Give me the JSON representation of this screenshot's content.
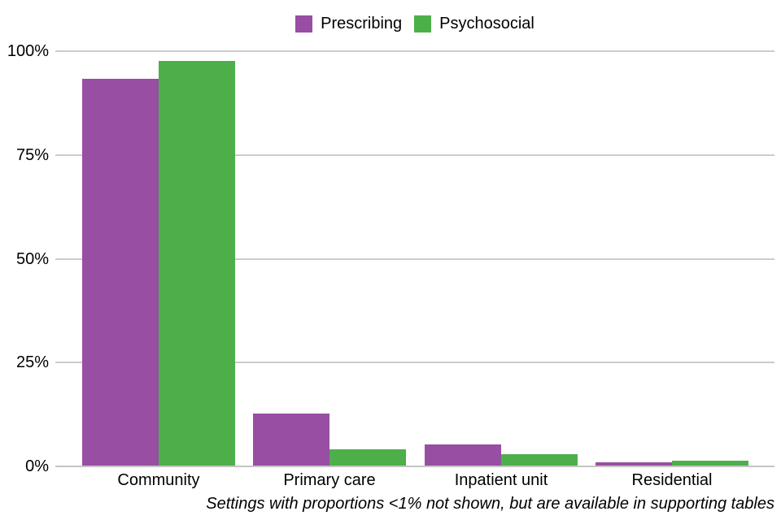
{
  "chart_data": {
    "type": "bar",
    "title": "",
    "categories": [
      "Community",
      "Primary care",
      "Inpatient unit",
      "Residential"
    ],
    "series": [
      {
        "name": "Prescribing",
        "color": "#984ea3",
        "values": [
          93.4,
          12.8,
          5.3,
          1.0
        ]
      },
      {
        "name": "Psychosocial",
        "color": "#4daf4a",
        "values": [
          97.7,
          4.2,
          2.9,
          1.4
        ]
      }
    ],
    "yticks": [
      {
        "label": "0%",
        "value": 0
      },
      {
        "label": "25%",
        "value": 25
      },
      {
        "label": "50%",
        "value": 50
      },
      {
        "label": "75%",
        "value": 75
      },
      {
        "label": "100%",
        "value": 100
      }
    ],
    "ylim": [
      0,
      100
    ],
    "grid": "horizontal",
    "legend_position": "top-center",
    "caption": "Settings with proportions <1% not shown, but are available in supporting tables",
    "styles": {
      "gridline_color": "#cccccc",
      "baseline_color": "#c4c4c4",
      "text_color": "#000000",
      "background": "#ffffff"
    }
  }
}
